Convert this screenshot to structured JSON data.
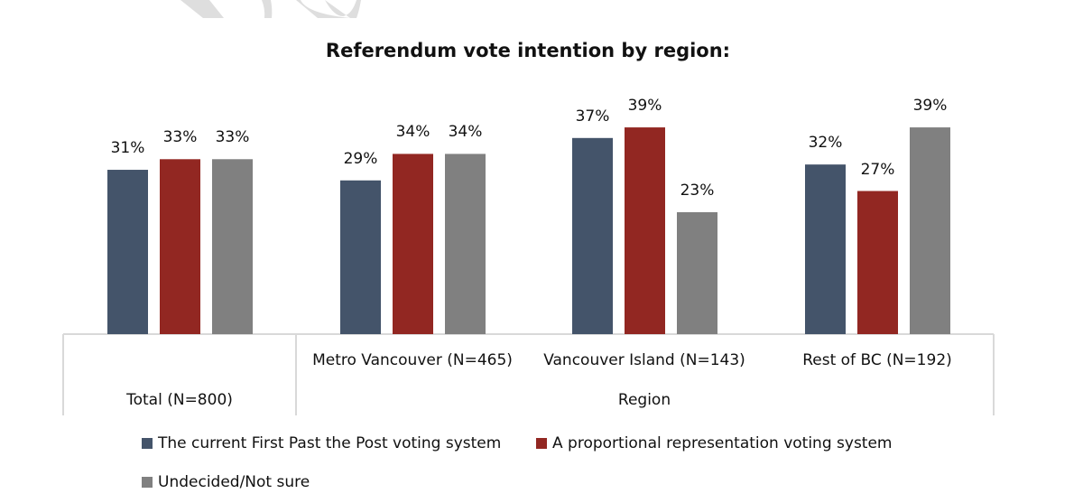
{
  "colors": {
    "fptp": "#44546a",
    "pr": "#922722",
    "undecided": "#808080",
    "grid": "#d9d9d9",
    "watermark": "#dedede"
  },
  "chart_data": {
    "type": "bar",
    "title": "Referendum vote intention by region:",
    "categories": [
      "Total (N=800)",
      "Metro Vancouver (N=465)",
      "Vancouver Island (N=143)",
      "Rest of BC (N=192)"
    ],
    "category_group_label": "Region",
    "series": [
      {
        "name": "The current First Past the Post voting system",
        "values": [
          31,
          29,
          37,
          32
        ],
        "labels": [
          "31%",
          "29%",
          "37%",
          "32%"
        ]
      },
      {
        "name": "A proportional representation voting system",
        "values": [
          33,
          34,
          39,
          27
        ],
        "labels": [
          "33%",
          "34%",
          "39%",
          "27%"
        ]
      },
      {
        "name": "Undecided/Not sure",
        "values": [
          33,
          34,
          23,
          39
        ],
        "labels": [
          "33%",
          "34%",
          "23%",
          "39%"
        ]
      }
    ],
    "ylim": [
      0,
      45
    ],
    "grid": false,
    "legend_placement": "bottom"
  }
}
